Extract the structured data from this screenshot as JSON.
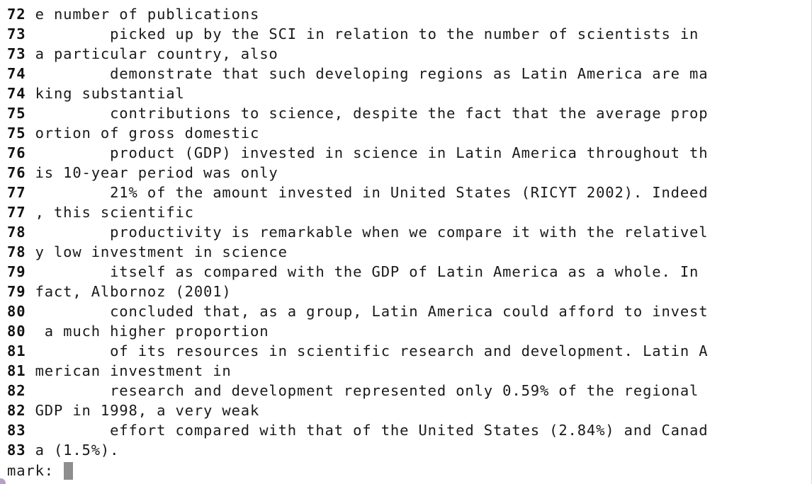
{
  "terminal": {
    "lines": [
      {
        "num": "72",
        "text": " e number of publications"
      },
      {
        "num": "73",
        "text": "         picked up by the SCI in relation to the number of scientists in"
      },
      {
        "num": "73",
        "text": " a particular country, also"
      },
      {
        "num": "74",
        "text": "         demonstrate that such developing regions as Latin America are ma"
      },
      {
        "num": "74",
        "text": " king substantial"
      },
      {
        "num": "75",
        "text": "         contributions to science, despite the fact that the average prop"
      },
      {
        "num": "75",
        "text": " ortion of gross domestic"
      },
      {
        "num": "76",
        "text": "         product (GDP) invested in science in Latin America throughout th"
      },
      {
        "num": "76",
        "text": " is 10-year period was only"
      },
      {
        "num": "77",
        "text": "         21% of the amount invested in United States (RICYT 2002). Indeed"
      },
      {
        "num": "77",
        "text": " , this scientific"
      },
      {
        "num": "78",
        "text": "         productivity is remarkable when we compare it with the relativel"
      },
      {
        "num": "78",
        "text": " y low investment in science"
      },
      {
        "num": "79",
        "text": "         itself as compared with the GDP of Latin America as a whole. In"
      },
      {
        "num": "79",
        "text": " fact, Albornoz (2001)"
      },
      {
        "num": "80",
        "text": "         concluded that, as a group, Latin America could afford to invest"
      },
      {
        "num": "80",
        "text": "  a much higher proportion"
      },
      {
        "num": "81",
        "text": "         of its resources in scientific research and development. Latin A"
      },
      {
        "num": "81",
        "text": " merican investment in"
      },
      {
        "num": "82",
        "text": "         research and development represented only 0.59% of the regional"
      },
      {
        "num": "82",
        "text": " GDP in 1998, a very weak"
      },
      {
        "num": "83",
        "text": "         effort compared with that of the United States (2.84%) and Canad"
      },
      {
        "num": "83",
        "text": " a (1.5%)."
      }
    ],
    "prompt": "mark: "
  }
}
